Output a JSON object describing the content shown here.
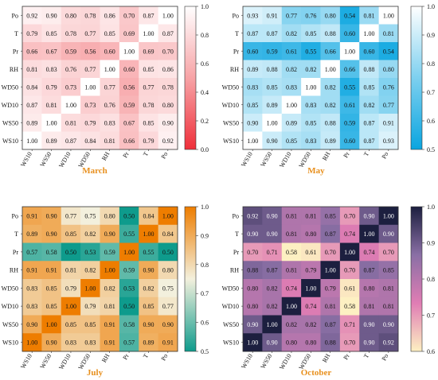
{
  "figure": {
    "variables": [
      "Po",
      "T",
      "Pr",
      "RH",
      "WD50",
      "WD10",
      "WS50",
      "WS10"
    ],
    "colorbar_ticks_text": "ticks"
  },
  "chart_data": [
    {
      "type": "heatmap",
      "title": "March",
      "rows": [
        "Po",
        "T",
        "Pr",
        "RH",
        "WD50",
        "WD10",
        "WS50",
        "WS10"
      ],
      "columns": [
        "WS10",
        "WS50",
        "WD10",
        "WD50",
        "RH",
        "Pr",
        "T",
        "Po"
      ],
      "values": [
        [
          0.92,
          0.9,
          0.8,
          0.78,
          0.86,
          0.7,
          0.87,
          1.0
        ],
        [
          0.79,
          0.85,
          0.78,
          0.77,
          0.85,
          0.69,
          1.0,
          0.87
        ],
        [
          0.66,
          0.67,
          0.59,
          0.56,
          0.6,
          1.0,
          0.69,
          0.7
        ],
        [
          0.81,
          0.83,
          0.76,
          0.77,
          1.0,
          0.6,
          0.85,
          0.86
        ],
        [
          0.84,
          0.79,
          0.73,
          1.0,
          0.77,
          0.56,
          0.77,
          0.78
        ],
        [
          0.87,
          0.81,
          1.0,
          0.73,
          0.76,
          0.59,
          0.78,
          0.8
        ],
        [
          0.89,
          1.0,
          0.81,
          0.79,
          0.83,
          0.67,
          0.85,
          0.9
        ],
        [
          1.0,
          0.89,
          0.87,
          0.84,
          0.81,
          0.66,
          0.79,
          0.92
        ]
      ],
      "colorbar": {
        "min": 0.0,
        "max": 1.0,
        "ticks": [
          "0.0",
          "0.2",
          "0.4",
          "0.6",
          "0.8",
          "1.0"
        ],
        "colors": [
          "#ef2f3a",
          "#f7a3a6",
          "#ffffff"
        ]
      },
      "title_color": "#e8901e"
    },
    {
      "type": "heatmap",
      "title": "May",
      "rows": [
        "Po",
        "T",
        "Pr",
        "RH",
        "WD50",
        "WD10",
        "WS50",
        "WS10"
      ],
      "columns": [
        "WS10",
        "WS50",
        "WD10",
        "WD50",
        "RH",
        "Pr",
        "T",
        "Po"
      ],
      "values": [
        [
          0.93,
          0.91,
          0.77,
          0.76,
          0.8,
          0.54,
          0.81,
          1.0
        ],
        [
          0.87,
          0.87,
          0.82,
          0.85,
          0.88,
          0.6,
          1.0,
          0.81
        ],
        [
          0.6,
          0.59,
          0.61,
          0.55,
          0.66,
          1.0,
          0.6,
          0.54
        ],
        [
          0.89,
          0.88,
          0.82,
          0.82,
          1.0,
          0.66,
          0.88,
          0.8
        ],
        [
          0.83,
          0.85,
          0.83,
          1.0,
          0.82,
          0.55,
          0.85,
          0.76
        ],
        [
          0.85,
          0.89,
          1.0,
          0.83,
          0.82,
          0.61,
          0.82,
          0.77
        ],
        [
          0.9,
          1.0,
          0.89,
          0.85,
          0.88,
          0.59,
          0.87,
          0.91
        ],
        [
          1.0,
          0.9,
          0.85,
          0.83,
          0.89,
          0.6,
          0.87,
          0.93
        ]
      ],
      "colorbar": {
        "min": 0.5,
        "max": 1.0,
        "ticks": [
          "0.5",
          "0.6",
          "0.7",
          "0.8",
          "0.9",
          "1.0"
        ],
        "colors": [
          "#0aa5e0",
          "#7dd0ef",
          "#ffffff"
        ]
      },
      "title_color": "#e8901e"
    },
    {
      "type": "heatmap",
      "title": "July",
      "rows": [
        "Po",
        "T",
        "Pr",
        "RH",
        "WD50",
        "WD10",
        "WS50",
        "WS10"
      ],
      "columns": [
        "WS10",
        "WS50",
        "WD10",
        "WD50",
        "RH",
        "Pr",
        "T",
        "Po"
      ],
      "values": [
        [
          0.91,
          0.9,
          0.77,
          0.75,
          0.8,
          0.5,
          0.84,
          1.0
        ],
        [
          0.89,
          0.9,
          0.85,
          0.82,
          0.9,
          0.55,
          1.0,
          0.84
        ],
        [
          0.57,
          0.58,
          0.5,
          0.53,
          0.59,
          1.0,
          0.55,
          0.5
        ],
        [
          0.91,
          0.91,
          0.81,
          0.82,
          1.0,
          0.59,
          0.9,
          0.8
        ],
        [
          0.83,
          0.85,
          0.79,
          1.0,
          0.82,
          0.53,
          0.82,
          0.75
        ],
        [
          0.83,
          0.85,
          1.0,
          0.79,
          0.81,
          0.5,
          0.85,
          0.77
        ],
        [
          0.9,
          1.0,
          0.85,
          0.85,
          0.91,
          0.58,
          0.9,
          0.9
        ],
        [
          1.0,
          0.9,
          0.83,
          0.83,
          0.91,
          0.57,
          0.89,
          0.91
        ]
      ],
      "colorbar": {
        "min": 0.5,
        "max": 1.0,
        "ticks": [
          "0.5",
          "0.6",
          "0.7",
          "0.8",
          "0.9",
          "1.0"
        ],
        "colors": [
          "#0e9b8c",
          "#f3f0dd",
          "#ee7d00"
        ]
      },
      "title_color": "#e8901e"
    },
    {
      "type": "heatmap",
      "title": "October",
      "rows": [
        "Po",
        "T",
        "Pr",
        "RH",
        "WD50",
        "WD10",
        "WS50",
        "WS10"
      ],
      "columns": [
        "WS10",
        "WS50",
        "WD10",
        "WD50",
        "RH",
        "Pr",
        "T",
        "Po"
      ],
      "values": [
        [
          0.92,
          0.9,
          0.81,
          0.81,
          0.85,
          0.7,
          0.9,
          1.0
        ],
        [
          0.9,
          0.9,
          0.81,
          0.8,
          0.87,
          0.74,
          1.0,
          0.9
        ],
        [
          0.7,
          0.71,
          0.58,
          0.61,
          0.7,
          1.0,
          0.74,
          0.7
        ],
        [
          0.88,
          0.87,
          0.81,
          0.79,
          1.0,
          0.7,
          0.87,
          0.85
        ],
        [
          0.8,
          0.82,
          0.74,
          1.0,
          0.79,
          0.61,
          0.8,
          0.81
        ],
        [
          0.8,
          0.82,
          1.0,
          0.74,
          0.81,
          0.58,
          0.81,
          0.81
        ],
        [
          0.9,
          1.0,
          0.82,
          0.82,
          0.87,
          0.71,
          0.9,
          0.9
        ],
        [
          1.0,
          0.9,
          0.8,
          0.8,
          0.88,
          0.7,
          0.9,
          0.92
        ]
      ],
      "colorbar": {
        "min": 0.6,
        "max": 1.0,
        "ticks": [
          "0.6",
          "0.7",
          "0.8",
          "0.9",
          "1.0"
        ],
        "colors": [
          "#fdf0c2",
          "#e07db4",
          "#8a6fa5",
          "#1c1f3f"
        ]
      },
      "title_color": "#e8901e"
    }
  ]
}
